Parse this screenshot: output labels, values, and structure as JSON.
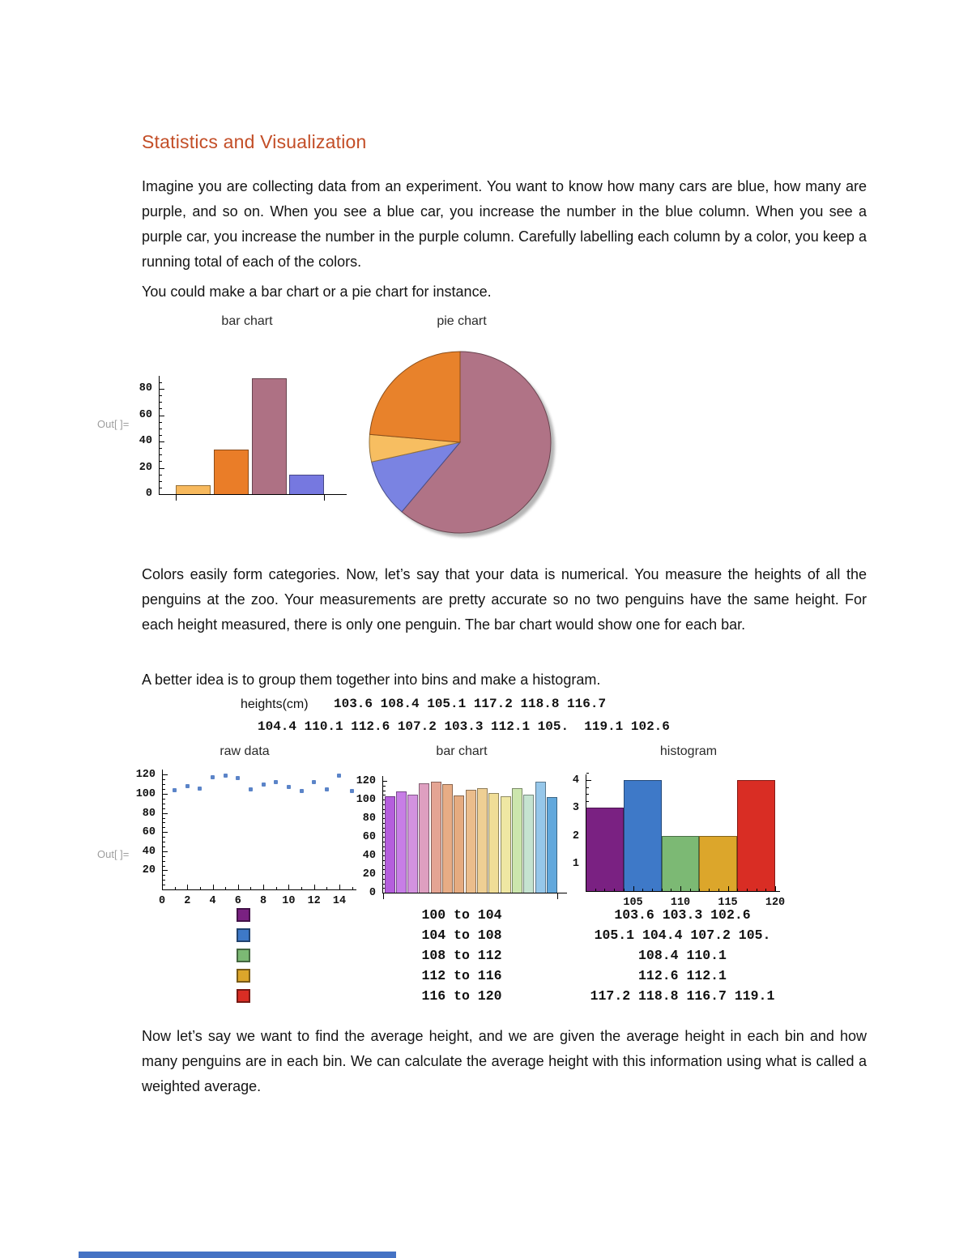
{
  "title": {
    "text": "Statistics and Visualization",
    "color": "#C34E27"
  },
  "paragraphs": {
    "p1": "Imagine you are collecting data from an experiment.  You want to know how many cars are blue, how many are purple, and so on.  When you see a blue car, you increase the number in the blue column.  When you see a purple car, you increase the number in the purple column.   Carefully labelling each column by a color, you keep a running total of each of the colors.",
    "p2": "You could make a bar chart or a pie chart for instance.",
    "p3": "Colors easily form categories.  Now, let’s say that your data is numerical.  You measure the heights of all the penguins at the zoo.  Your measurements are pretty accurate so no two penguins have the same height.  For each height measured, there is only one penguin.  The bar chart would show one for each bar.",
    "p4": "A better idea is to group them together into bins and make a histogram.",
    "p5": "Now let’s say we want to find the average height, and we are given the average height in each bin and how many penguins are in each bin.  We can calculate the average height with this information using what is called a weighted average."
  },
  "labels": {
    "out1": "Out[ ]=",
    "out2": "Out[ ]=",
    "heights": "heights(cm)"
  },
  "data_lines": {
    "line1": "103.6 108.4 105.1 117.2 118.8 116.7",
    "line2": "104.4 110.1 112.6 107.2 103.3 112.1 105.  119.1 102.6"
  },
  "chart_data": [
    {
      "id": "car-colors-bar",
      "type": "bar",
      "title": "bar chart",
      "values": [
        7,
        34,
        88,
        15
      ],
      "colors": [
        "#F7B95D",
        "#EA7D28",
        "#AE7184",
        "#7678E0"
      ],
      "yticks": [
        0,
        20,
        40,
        60,
        80
      ],
      "ylim": [
        0,
        92
      ],
      "grid": false
    },
    {
      "id": "car-colors-pie",
      "type": "pie",
      "title": "pie chart",
      "values": [
        88,
        15,
        7,
        34
      ],
      "colors": [
        "#B07386",
        "#7A83E2",
        "#F7BE61",
        "#E8822B"
      ],
      "start": "top",
      "direction": "clockwise"
    },
    {
      "id": "raw-data-scatter",
      "type": "scatter",
      "title": "raw data",
      "x": [
        1,
        2,
        3,
        4,
        5,
        6,
        7,
        8,
        9,
        10,
        11,
        12,
        13,
        14,
        15
      ],
      "y": [
        103.6,
        108.4,
        105.1,
        117.2,
        118.8,
        116.7,
        104.4,
        110.1,
        112.6,
        107.2,
        103.3,
        112.1,
        105.0,
        119.1,
        102.6
      ],
      "point_color": "#5B84C8",
      "xticks": [
        0,
        2,
        4,
        6,
        8,
        10,
        12,
        14
      ],
      "yticks": [
        20,
        40,
        60,
        80,
        100,
        120
      ],
      "xlim": [
        0,
        15.5
      ],
      "ylim": [
        0,
        125
      ],
      "grid": false
    },
    {
      "id": "heights-bar",
      "type": "bar",
      "title": "bar chart",
      "values": [
        103.6,
        108.4,
        105.1,
        117.2,
        118.8,
        116.7,
        104.4,
        110.1,
        112.6,
        107.2,
        103.3,
        112.1,
        105.0,
        119.1,
        102.6
      ],
      "colors": [
        "#B55EDD",
        "#C77EE6",
        "#D392DF",
        "#DE9FC0",
        "#E4A493",
        "#E7AC85",
        "#E5AB80",
        "#EBBD8C",
        "#EECF94",
        "#F0DD97",
        "#EFE7A3",
        "#CCE6AD",
        "#C5E3D0",
        "#96C7EA",
        "#62A8DC"
      ],
      "yticks": [
        0,
        20,
        40,
        60,
        80,
        100,
        120
      ],
      "ylim": [
        0,
        125
      ],
      "grid": false
    },
    {
      "id": "heights-histogram",
      "type": "histogram",
      "title": "histogram",
      "bin_edges": [
        100,
        104,
        108,
        112,
        116,
        120
      ],
      "counts": [
        3,
        4,
        2,
        2,
        4
      ],
      "colors": [
        "#7A2182",
        "#3E79C8",
        "#7CB974",
        "#DCA62B",
        "#D92D24"
      ],
      "xticks": [
        105,
        110,
        115,
        120
      ],
      "yticks": [
        1,
        2,
        3,
        4
      ],
      "grid": false
    }
  ],
  "legend": {
    "rows": [
      {
        "color": "#7A2182",
        "bin": "100 to 104",
        "values": "103.6 103.3 102.6"
      },
      {
        "color": "#3E79C8",
        "bin": "104 to 108",
        "values": "105.1 104.4 107.2 105."
      },
      {
        "color": "#7CB974",
        "bin": "108 to 112",
        "values": "108.4 110.1"
      },
      {
        "color": "#DCA62B",
        "bin": "112 to 116",
        "values": "112.6 112.1"
      },
      {
        "color": "#D92D24",
        "bin": "116 to 120",
        "values": "117.2 118.8 116.7 119.1"
      }
    ]
  },
  "bottom_bar": {
    "color": "#4472C4"
  }
}
